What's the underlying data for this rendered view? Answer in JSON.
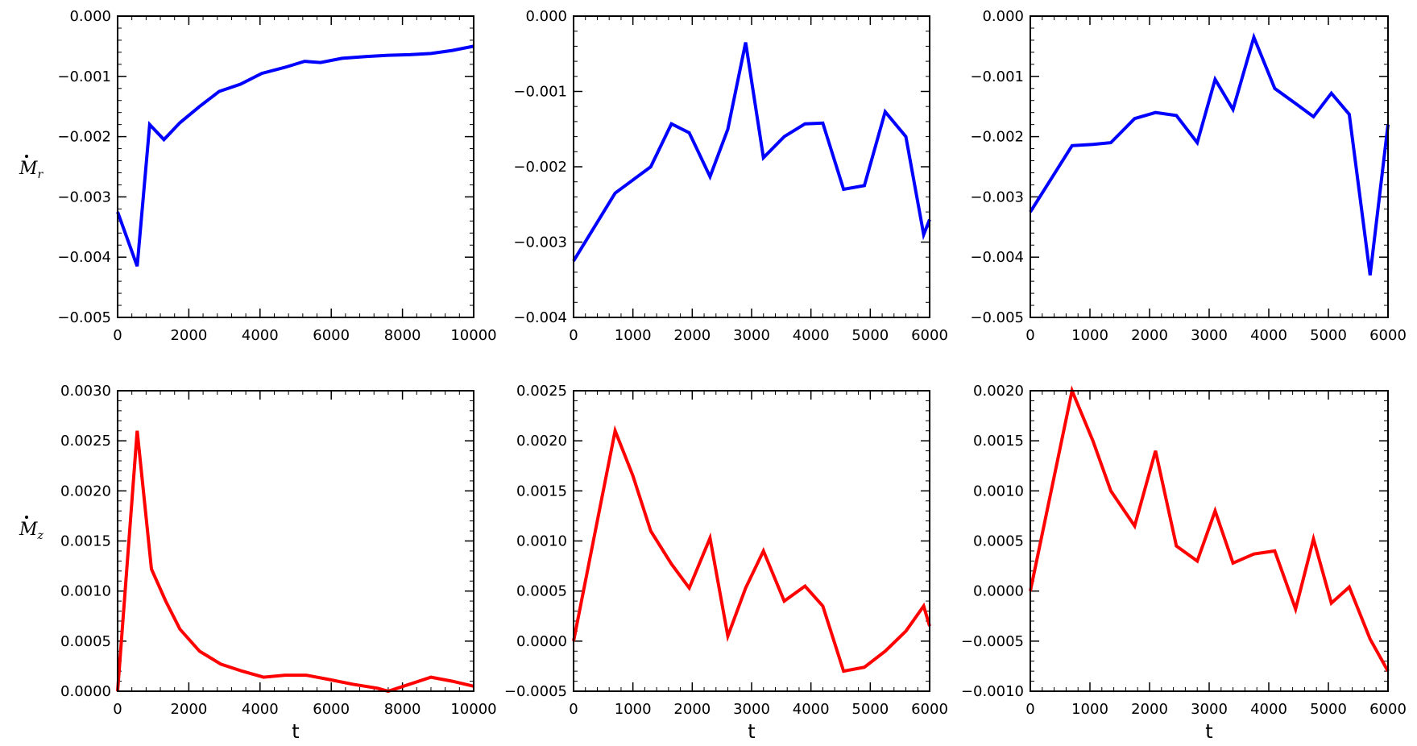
{
  "figure": {
    "row_labels": [
      {
        "symbol": "M",
        "subscript": "r"
      },
      {
        "symbol": "M",
        "subscript": "z"
      }
    ],
    "colors": {
      "top_row": "#0000ff",
      "bottom_row": "#ff0000"
    }
  },
  "chart_data": [
    {
      "type": "line",
      "panel": "top-left",
      "color": "#0000ff",
      "xlim": [
        0,
        10000
      ],
      "ylim": [
        -0.005,
        0.0
      ],
      "xticks": [
        0,
        2000,
        4000,
        6000,
        8000,
        10000
      ],
      "xtick_labels": [
        "0",
        "2000",
        "4000",
        "6000",
        "8000",
        "10000"
      ],
      "yticks": [
        -0.005,
        -0.004,
        -0.003,
        -0.002,
        -0.001,
        0.0
      ],
      "ytick_labels": [
        "−0.005",
        "−0.004",
        "−0.003",
        "−0.002",
        "−0.001",
        "0.000"
      ],
      "xlabel": "",
      "x": [
        0,
        550,
        900,
        1300,
        1750,
        2300,
        2850,
        3450,
        4050,
        4700,
        5250,
        5700,
        6300,
        7000,
        7600,
        8200,
        8800,
        9400,
        10000
      ],
      "y": [
        -0.00325,
        -0.00415,
        -0.0018,
        -0.00205,
        -0.00177,
        -0.0015,
        -0.00125,
        -0.00113,
        -0.00095,
        -0.00085,
        -0.00075,
        -0.00077,
        -0.0007,
        -0.00067,
        -0.00065,
        -0.00064,
        -0.00062,
        -0.00057,
        -0.0005
      ]
    },
    {
      "type": "line",
      "panel": "top-middle",
      "color": "#0000ff",
      "xlim": [
        0,
        6000
      ],
      "ylim": [
        -0.004,
        0.0
      ],
      "xticks": [
        0,
        1000,
        2000,
        3000,
        4000,
        5000,
        6000
      ],
      "xtick_labels": [
        "0",
        "1000",
        "2000",
        "3000",
        "4000",
        "5000",
        "6000"
      ],
      "yticks": [
        -0.004,
        -0.003,
        -0.002,
        -0.001,
        0.0
      ],
      "ytick_labels": [
        "−0.004",
        "−0.003",
        "−0.002",
        "−0.001",
        "0.000"
      ],
      "xlabel": "",
      "x": [
        0,
        700,
        1300,
        1650,
        1950,
        2300,
        2600,
        2900,
        3200,
        3550,
        3900,
        4200,
        4550,
        4900,
        5250,
        5600,
        5900,
        6000
      ],
      "y": [
        -0.00325,
        -0.00235,
        -0.002,
        -0.00143,
        -0.00155,
        -0.00213,
        -0.0015,
        -0.00035,
        -0.00188,
        -0.0016,
        -0.00143,
        -0.00142,
        -0.0023,
        -0.00225,
        -0.00127,
        -0.0016,
        -0.0029,
        -0.0027
      ]
    },
    {
      "type": "line",
      "panel": "top-right",
      "color": "#0000ff",
      "xlim": [
        0,
        6000
      ],
      "ylim": [
        -0.005,
        0.0
      ],
      "xticks": [
        0,
        1000,
        2000,
        3000,
        4000,
        5000,
        6000
      ],
      "xtick_labels": [
        "0",
        "1000",
        "2000",
        "3000",
        "4000",
        "5000",
        "6000"
      ],
      "yticks": [
        -0.005,
        -0.004,
        -0.003,
        -0.002,
        -0.001,
        0.0
      ],
      "ytick_labels": [
        "−0.005",
        "−0.004",
        "−0.003",
        "−0.002",
        "−0.001",
        "0.000"
      ],
      "xlabel": "",
      "x": [
        0,
        700,
        1050,
        1350,
        1750,
        2100,
        2450,
        2800,
        3100,
        3400,
        3750,
        4100,
        4450,
        4750,
        5050,
        5350,
        5700,
        6000
      ],
      "y": [
        -0.00325,
        -0.00215,
        -0.00213,
        -0.0021,
        -0.0017,
        -0.0016,
        -0.00165,
        -0.0021,
        -0.00105,
        -0.00155,
        -0.00035,
        -0.0012,
        -0.00145,
        -0.00167,
        -0.00128,
        -0.00163,
        -0.0043,
        -0.0018
      ]
    },
    {
      "type": "line",
      "panel": "bottom-left",
      "color": "#ff0000",
      "xlim": [
        0,
        10000
      ],
      "ylim": [
        0.0,
        0.003
      ],
      "xticks": [
        0,
        2000,
        4000,
        6000,
        8000,
        10000
      ],
      "xtick_labels": [
        "0",
        "2000",
        "4000",
        "6000",
        "8000",
        "10000"
      ],
      "yticks": [
        0.0,
        0.0005,
        0.001,
        0.0015,
        0.002,
        0.0025,
        0.003
      ],
      "ytick_labels": [
        "0.0000",
        "0.0005",
        "0.0010",
        "0.0015",
        "0.0020",
        "0.0025",
        "0.0030"
      ],
      "xlabel": "t",
      "x": [
        0,
        550,
        950,
        1350,
        1750,
        2300,
        2900,
        3500,
        4100,
        4700,
        5300,
        5900,
        6600,
        7300,
        7600,
        8200,
        8800,
        9400,
        10000
      ],
      "y": [
        0.0,
        0.0026,
        0.00122,
        0.0009,
        0.00062,
        0.0004,
        0.00027,
        0.0002,
        0.00014,
        0.00016,
        0.00016,
        0.00012,
        7e-05,
        3e-05,
        0.0,
        7e-05,
        0.00014,
        0.0001,
        5e-05
      ]
    },
    {
      "type": "line",
      "panel": "bottom-middle",
      "color": "#ff0000",
      "xlim": [
        0,
        6000
      ],
      "ylim": [
        -0.0005,
        0.0025
      ],
      "xticks": [
        0,
        1000,
        2000,
        3000,
        4000,
        5000,
        6000
      ],
      "xtick_labels": [
        "0",
        "1000",
        "2000",
        "3000",
        "4000",
        "5000",
        "6000"
      ],
      "yticks": [
        -0.0005,
        0.0,
        0.0005,
        0.001,
        0.0015,
        0.002,
        0.0025
      ],
      "ytick_labels": [
        "−0.0005",
        "0.0000",
        "0.0005",
        "0.0010",
        "0.0015",
        "0.0020",
        "0.0025"
      ],
      "xlabel": "t",
      "x": [
        0,
        700,
        1000,
        1300,
        1650,
        1950,
        2300,
        2600,
        2900,
        3200,
        3550,
        3900,
        4200,
        4550,
        4900,
        5250,
        5600,
        5900,
        6000
      ],
      "y": [
        0.0,
        0.0021,
        0.00165,
        0.0011,
        0.00077,
        0.00053,
        0.00103,
        5e-05,
        0.00053,
        0.0009,
        0.0004,
        0.00055,
        0.00035,
        -0.0003,
        -0.00026,
        -0.0001,
        0.0001,
        0.00035,
        0.00015
      ]
    },
    {
      "type": "line",
      "panel": "bottom-right",
      "color": "#ff0000",
      "xlim": [
        0,
        6000
      ],
      "ylim": [
        -0.001,
        0.002
      ],
      "xticks": [
        0,
        1000,
        2000,
        3000,
        4000,
        5000,
        6000
      ],
      "xtick_labels": [
        "0",
        "1000",
        "2000",
        "3000",
        "4000",
        "5000",
        "6000"
      ],
      "yticks": [
        -0.001,
        -0.0005,
        0.0,
        0.0005,
        0.001,
        0.0015,
        0.002
      ],
      "ytick_labels": [
        "−0.0010",
        "−0.0005",
        "0.0000",
        "0.0005",
        "0.0010",
        "0.0015",
        "0.0020"
      ],
      "xlabel": "t",
      "x": [
        0,
        700,
        1050,
        1350,
        1750,
        2100,
        2450,
        2800,
        3100,
        3400,
        3750,
        4100,
        4450,
        4750,
        5050,
        5350,
        5700,
        6000
      ],
      "y": [
        0.0,
        0.002,
        0.0015,
        0.001,
        0.00065,
        0.0014,
        0.00045,
        0.0003,
        0.0008,
        0.00028,
        0.00037,
        0.0004,
        -0.00018,
        0.00052,
        -0.00012,
        4e-05,
        -0.00048,
        -0.0008
      ]
    }
  ]
}
